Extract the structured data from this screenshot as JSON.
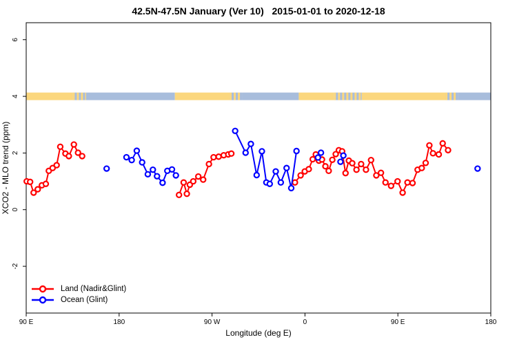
{
  "chart_data": {
    "type": "scatter",
    "title": "42.5N-47.5N January (Ver 10)   2015-01-01 to 2020-12-18",
    "xlabel": "Longitude (deg E)",
    "ylabel": "XCO2 - MLO trend (ppm)",
    "xlim": [
      -270,
      180
    ],
    "ylim": [
      -3.65,
      6.6
    ],
    "grid": false,
    "legend_position": "bottom-left",
    "x_ticks": [
      {
        "pos": -270,
        "label": "90 E"
      },
      {
        "pos": -180,
        "label": "180"
      },
      {
        "pos": -90,
        "label": "90 W"
      },
      {
        "pos": 0,
        "label": "0"
      },
      {
        "pos": 90,
        "label": "90 E"
      },
      {
        "pos": 180,
        "label": "180"
      }
    ],
    "y_ticks": [
      {
        "pos": -2,
        "label": "-2"
      },
      {
        "pos": 0,
        "label": "0"
      },
      {
        "pos": 2,
        "label": "2"
      },
      {
        "pos": 4,
        "label": "4"
      },
      {
        "pos": 6,
        "label": "6"
      }
    ],
    "colors": {
      "land_series": "#ff0000",
      "ocean_series": "#0000ff",
      "band_land": "#fbd77e",
      "band_ocean": "#a8bddc",
      "axis": "#000000"
    },
    "surface_band": {
      "center_value": 4,
      "segments": [
        {
          "from": -270,
          "to": -225,
          "type": "land"
        },
        {
          "from": -225,
          "to": -212,
          "type": "mixed"
        },
        {
          "from": -212,
          "to": -126,
          "type": "ocean"
        },
        {
          "from": -126,
          "to": -73,
          "type": "land"
        },
        {
          "from": -73,
          "to": -61,
          "type": "mixed"
        },
        {
          "from": -61,
          "to": -6,
          "type": "ocean"
        },
        {
          "from": -6,
          "to": 28,
          "type": "land"
        },
        {
          "from": 28,
          "to": 55,
          "type": "mixed"
        },
        {
          "from": 55,
          "to": 136,
          "type": "land"
        },
        {
          "from": 136,
          "to": 148,
          "type": "mixed"
        },
        {
          "from": 148,
          "to": 180,
          "type": "ocean"
        }
      ]
    },
    "gap_threshold_deg": 13,
    "series": [
      {
        "name": "Land (Nadir&Glint)",
        "color": "#ff0000",
        "points": [
          [
            -269.5,
            1.0
          ],
          [
            -266.2,
            0.98
          ],
          [
            -262.8,
            0.6
          ],
          [
            -258.8,
            0.72
          ],
          [
            -254.8,
            0.86
          ],
          [
            -251.0,
            0.91
          ],
          [
            -248.1,
            1.37
          ],
          [
            -244.4,
            1.47
          ],
          [
            -240.5,
            1.57
          ],
          [
            -237.0,
            2.22
          ],
          [
            -232.0,
            1.98
          ],
          [
            -228.7,
            1.89
          ],
          [
            -223.8,
            2.3
          ],
          [
            -219.8,
            2.01
          ],
          [
            -215.8,
            1.89
          ],
          [
            -122.0,
            0.52
          ],
          [
            -117.5,
            0.96
          ],
          [
            -114.4,
            0.56
          ],
          [
            -111.5,
            0.88
          ],
          [
            -108.2,
            1.0
          ],
          [
            -103.3,
            1.17
          ],
          [
            -98.6,
            1.06
          ],
          [
            -93.0,
            1.61
          ],
          [
            -88.5,
            1.85
          ],
          [
            -83.6,
            1.87
          ],
          [
            -78.7,
            1.92
          ],
          [
            -74.3,
            1.95
          ],
          [
            -71.3,
            1.98
          ],
          [
            -9.7,
            0.96
          ],
          [
            -4.2,
            1.21
          ],
          [
            -0.2,
            1.35
          ],
          [
            3.7,
            1.43
          ],
          [
            7.5,
            1.78
          ],
          [
            10.5,
            1.95
          ],
          [
            13.5,
            1.73
          ],
          [
            16.5,
            1.77
          ],
          [
            19.8,
            1.53
          ],
          [
            23.0,
            1.37
          ],
          [
            26.5,
            1.76
          ],
          [
            29.8,
            1.96
          ],
          [
            32.8,
            2.1
          ],
          [
            36.0,
            2.06
          ],
          [
            39.3,
            1.29
          ],
          [
            42.5,
            1.73
          ],
          [
            45.8,
            1.64
          ],
          [
            49.9,
            1.41
          ],
          [
            54.4,
            1.61
          ],
          [
            59.1,
            1.41
          ],
          [
            64.0,
            1.75
          ],
          [
            69.1,
            1.21
          ],
          [
            73.6,
            1.3
          ],
          [
            78.0,
            0.96
          ],
          [
            83.4,
            0.84
          ],
          [
            89.7,
            1.0
          ],
          [
            94.6,
            0.6
          ],
          [
            99.3,
            0.96
          ],
          [
            104.2,
            0.94
          ],
          [
            109.1,
            1.41
          ],
          [
            113.1,
            1.47
          ],
          [
            116.9,
            1.65
          ],
          [
            120.5,
            2.27
          ],
          [
            124.0,
            1.99
          ],
          [
            129.6,
            1.95
          ],
          [
            133.4,
            2.34
          ],
          [
            138.6,
            2.1
          ]
        ]
      },
      {
        "name": "Ocean (Glint)",
        "color": "#0000ff",
        "points": [
          [
            -192.1,
            1.45
          ],
          [
            -172.9,
            1.85
          ],
          [
            -167.8,
            1.75
          ],
          [
            -162.9,
            2.08
          ],
          [
            -157.7,
            1.67
          ],
          [
            -152.2,
            1.25
          ],
          [
            -147.3,
            1.41
          ],
          [
            -143.3,
            1.18
          ],
          [
            -137.9,
            0.95
          ],
          [
            -133.3,
            1.37
          ],
          [
            -128.8,
            1.42
          ],
          [
            -125.0,
            1.21
          ],
          [
            -67.6,
            2.78
          ],
          [
            -57.5,
            2.01
          ],
          [
            -52.4,
            2.32
          ],
          [
            -46.8,
            1.22
          ],
          [
            -41.7,
            2.06
          ],
          [
            -37.4,
            0.96
          ],
          [
            -34.1,
            0.91
          ],
          [
            -28.3,
            1.35
          ],
          [
            -23.4,
            0.96
          ],
          [
            -17.8,
            1.47
          ],
          [
            -13.3,
            0.76
          ],
          [
            -8.2,
            2.07
          ],
          [
            12.6,
            1.84
          ],
          [
            15.5,
            2.01
          ],
          [
            34.4,
            1.69
          ],
          [
            37.2,
            1.91
          ],
          [
            167.2,
            1.45
          ]
        ]
      }
    ],
    "legend": [
      "Land (Nadir&Glint)",
      "Ocean (Glint)"
    ]
  }
}
